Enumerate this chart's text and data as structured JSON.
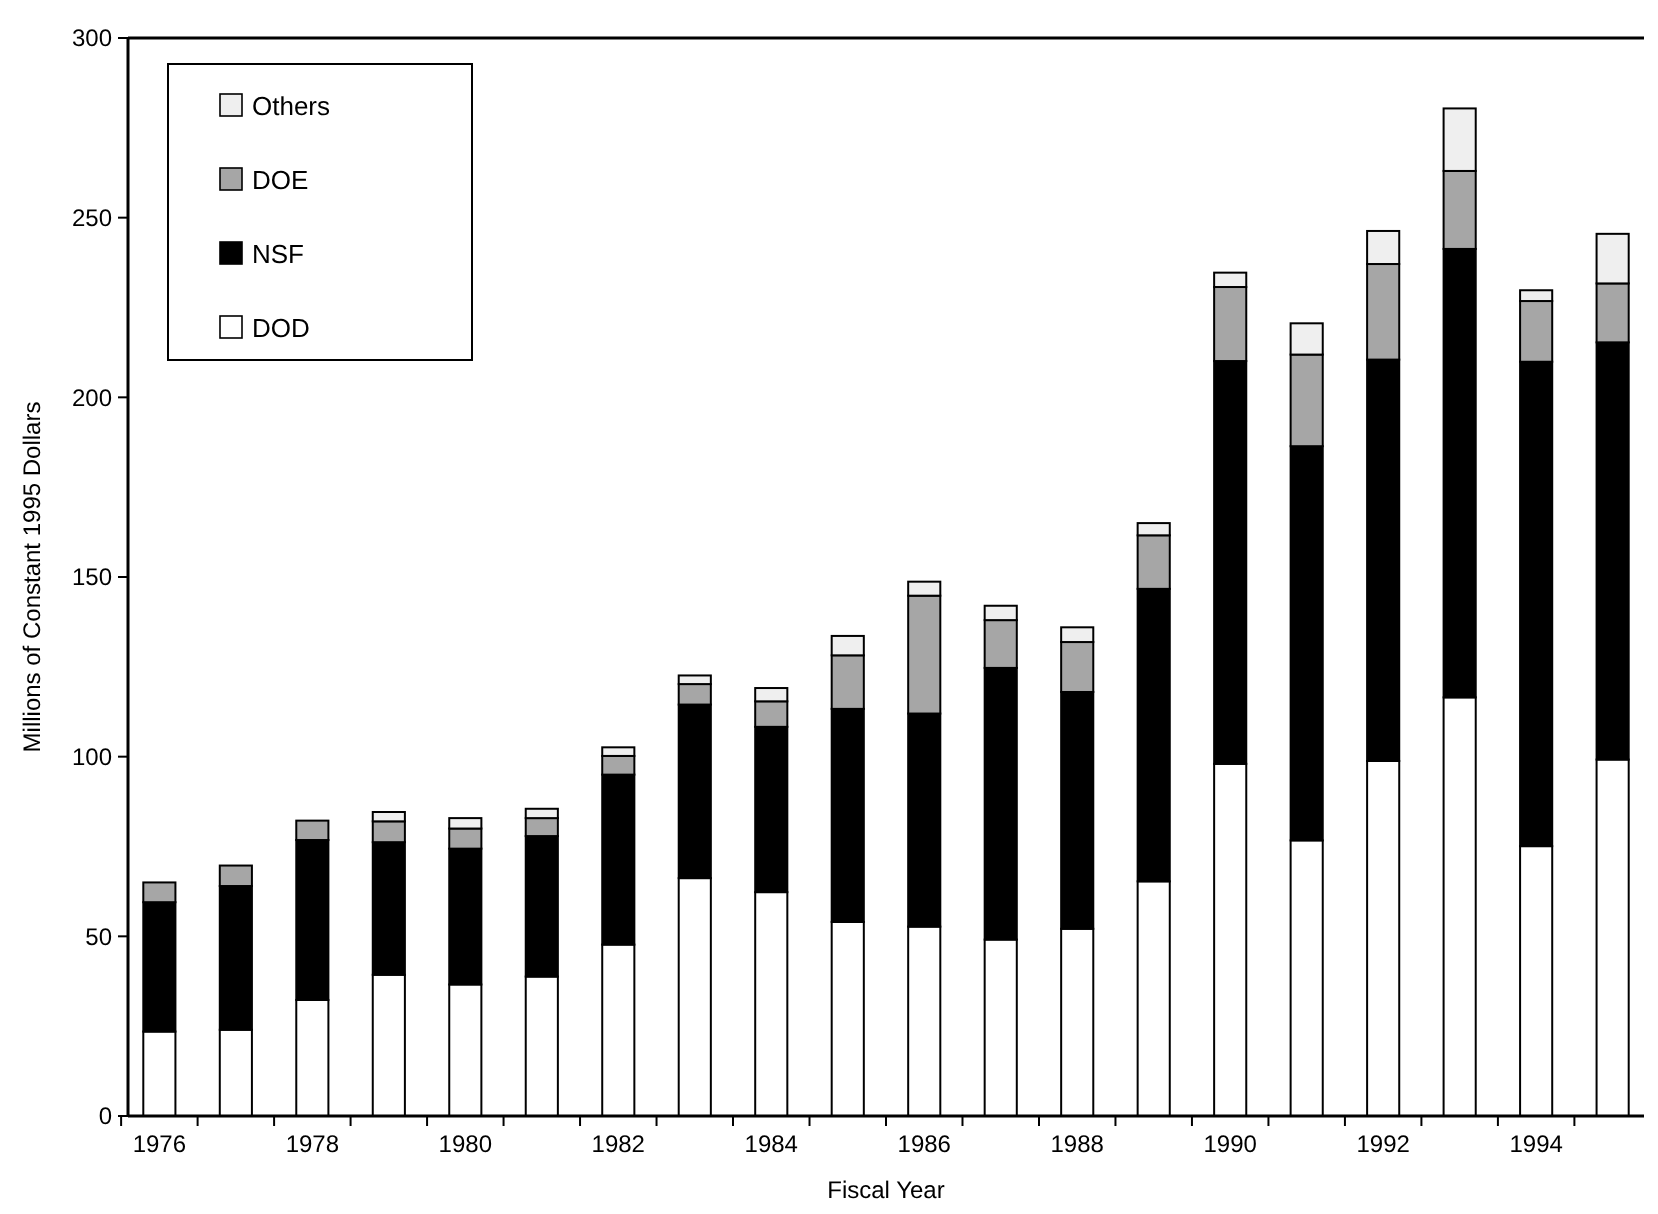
{
  "chart_data": {
    "type": "bar",
    "stacked": true,
    "xlabel": "Fiscal Year",
    "ylabel": "Millions of Constant 1995 Dollars",
    "categories": [
      "1976",
      null,
      "1978",
      null,
      "1980",
      null,
      "1982",
      null,
      "1984",
      null,
      "1986",
      null,
      "1988",
      null,
      "1990",
      null,
      "1992",
      null,
      "1994",
      null
    ],
    "series": [
      {
        "name": "DOD",
        "color": "#ffffff",
        "values": [
          23.5,
          24,
          32.3,
          39.3,
          36.6,
          38.8,
          47.7,
          66.2,
          62.3,
          54,
          52.7,
          49.1,
          52.1,
          65.3,
          98,
          76.7,
          98.8,
          116.5,
          75.1,
          99.2
        ]
      },
      {
        "name": "NSF",
        "color": "#000000",
        "values": [
          36,
          40,
          44.5,
          36.9,
          37.8,
          39.1,
          47.3,
          48.3,
          46,
          59.3,
          59.3,
          75.6,
          65.9,
          81.4,
          112.1,
          109.7,
          111.7,
          124.8,
          134.8,
          116.1
        ]
      },
      {
        "name": "DOE",
        "color": "#a6a6a6",
        "values": [
          5.5,
          5.7,
          5.4,
          5.8,
          5.6,
          5,
          5.2,
          5.7,
          7.1,
          14.9,
          32.8,
          13.3,
          13.9,
          14.9,
          20.6,
          25.5,
          26.6,
          21.7,
          16.9,
          16.4
        ]
      },
      {
        "name": "Others",
        "color": "#efefef",
        "values": [
          0,
          0,
          0,
          2.6,
          2.9,
          2.6,
          2.4,
          2.4,
          3.7,
          5.4,
          3.9,
          4,
          4.1,
          3.4,
          4,
          8.7,
          9.2,
          17.4,
          3,
          13.8
        ]
      }
    ],
    "ylim": [
      0,
      300
    ],
    "yticks": [
      0,
      50,
      100,
      150,
      200,
      250,
      300
    ],
    "legend": "top left"
  }
}
